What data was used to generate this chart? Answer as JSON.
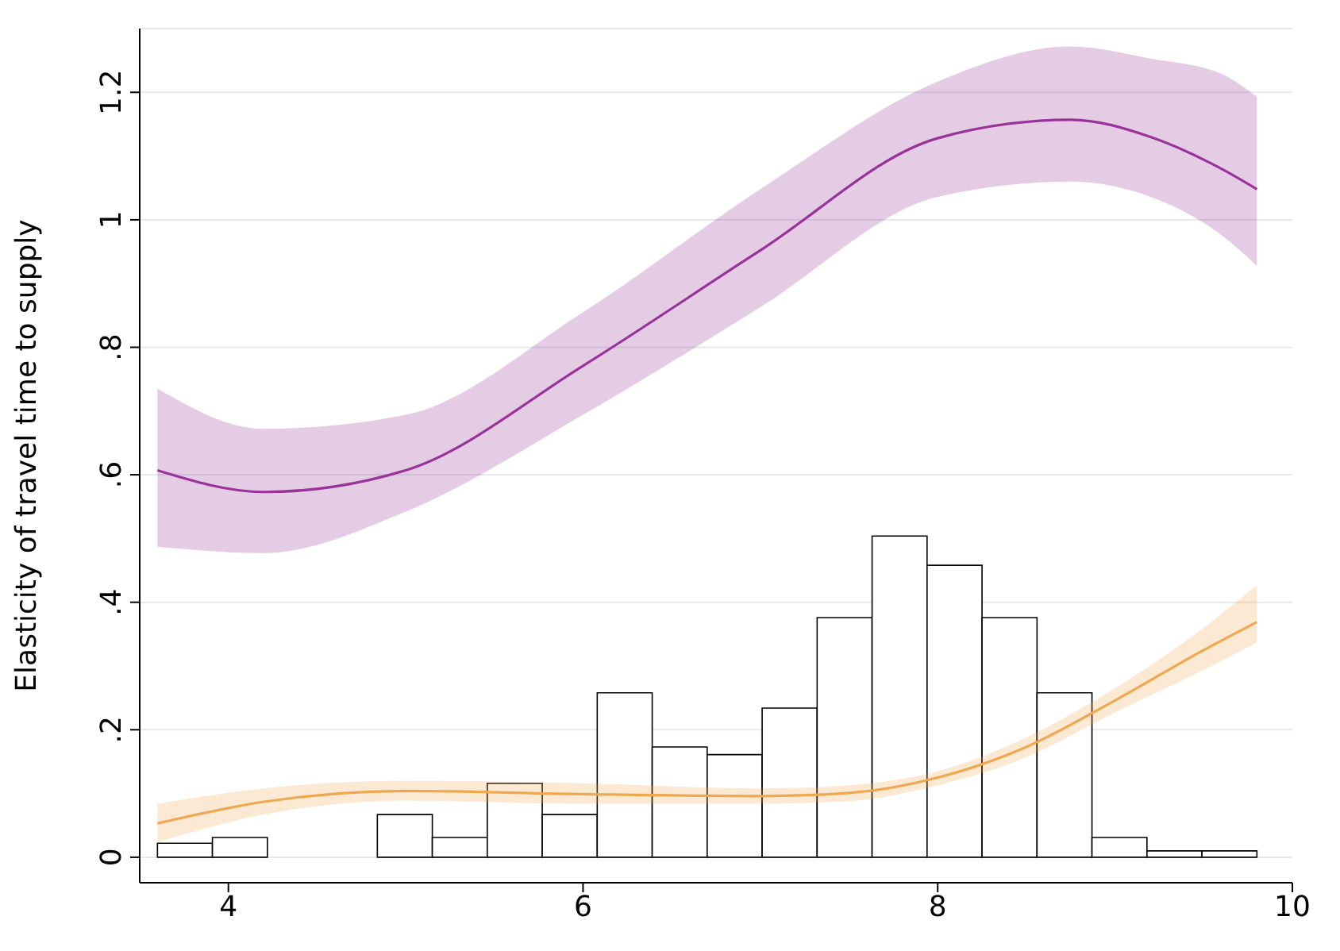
{
  "chart_data": {
    "type": "line",
    "ylabel": "Elasticity of travel time to supply",
    "xlim": [
      3.5,
      10
    ],
    "xticks": [
      4,
      6,
      8,
      10
    ],
    "ylim": [
      -0.04,
      1.3
    ],
    "yticks": [
      0,
      {
        "value": 0.2,
        "label": ".2"
      },
      {
        "value": 0.4,
        "label": ".4"
      },
      {
        "value": 0.6,
        "label": ".6"
      },
      {
        "value": 0.8,
        "label": ".8"
      },
      1,
      1.2
    ],
    "grid": "y",
    "marker": "none",
    "line_style": "solid",
    "series": [
      {
        "type": "histogram",
        "color": "#ffffff",
        "bins": [
          3.6,
          3.91,
          4.22,
          4.53,
          4.84,
          5.15,
          5.46,
          5.77,
          6.08,
          6.39,
          6.7,
          7.01,
          7.32,
          7.63,
          7.94,
          8.25,
          8.56,
          8.87,
          9.18,
          9.49,
          9.8
        ],
        "values": [
          0.022,
          0.031,
          0,
          0,
          0.067,
          0.031,
          0.116,
          0.067,
          0.258,
          0.173,
          0.161,
          0.234,
          0.376,
          0.504,
          0.458,
          0.376,
          0.258,
          0.031,
          0.01,
          0.01
        ]
      },
      {
        "color": "#993399",
        "x": [
          3.6,
          4.2,
          5,
          6,
          7,
          8,
          8.75,
          9.2,
          9.6,
          9.8
        ],
        "values": [
          0.607,
          0.573,
          0.607,
          0.771,
          0.952,
          1.128,
          1.157,
          1.13,
          1.08,
          1.048
        ],
        "lower": [
          0.487,
          0.477,
          0.542,
          0.694,
          0.863,
          1.036,
          1.06,
          1.036,
          0.976,
          0.928
        ],
        "upper": [
          0.735,
          0.672,
          0.694,
          0.855,
          1.048,
          1.217,
          1.272,
          1.253,
          1.229,
          1.193
        ]
      },
      {
        "color": "#f0a850",
        "x": [
          3.6,
          4.2,
          5,
          6,
          7,
          7.5,
          8,
          8.5,
          9,
          9.5,
          9.8
        ],
        "values": [
          0.053,
          0.087,
          0.104,
          0.099,
          0.096,
          0.101,
          0.125,
          0.173,
          0.246,
          0.325,
          0.369
        ],
        "lower": [
          0.024,
          0.067,
          0.089,
          0.084,
          0.084,
          0.088,
          0.113,
          0.157,
          0.227,
          0.294,
          0.337
        ],
        "upper": [
          0.084,
          0.108,
          0.12,
          0.116,
          0.108,
          0.113,
          0.135,
          0.188,
          0.265,
          0.36,
          0.427
        ]
      }
    ]
  }
}
